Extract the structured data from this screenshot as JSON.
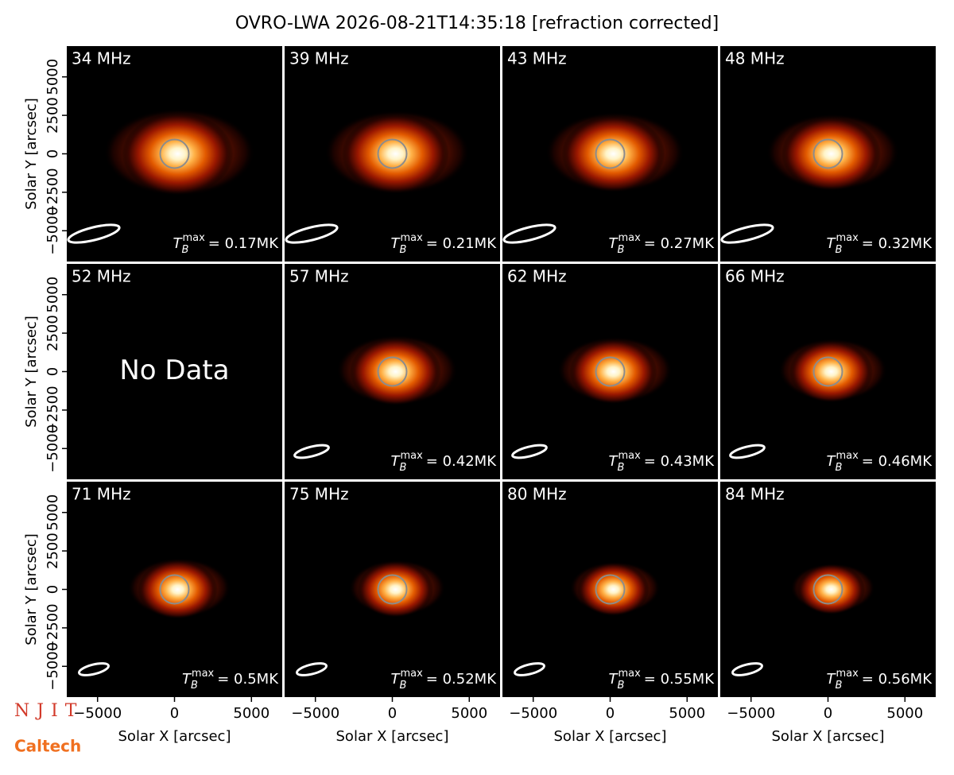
{
  "title": "OVRO-LWA 2026-08-21T14:35:18 [refraction corrected]",
  "logos": {
    "njit": "NJIT",
    "caltech": "Caltech"
  },
  "chart_data": [
    {
      "type": "image",
      "title": "34 MHz",
      "xlim": [
        -7000,
        7000
      ],
      "ylim": [
        -7000,
        7000
      ],
      "ylabel": "Solar Y [arcsec]",
      "yticks": [
        {
          "value": -5000,
          "label": "−5000"
        },
        {
          "value": -2500,
          "label": "−2500"
        },
        0,
        2500,
        5000
      ],
      "annotation": {
        "symbol": "T",
        "subscript": "B",
        "superscript": "max",
        "text": "= 0.17MK"
      }
    },
    {
      "type": "image",
      "title": "39 MHz",
      "xlim": [
        -7000,
        7000
      ],
      "ylim": [
        -7000,
        7000
      ],
      "annotation": {
        "symbol": "T",
        "subscript": "B",
        "superscript": "max",
        "text": "= 0.21MK"
      }
    },
    {
      "type": "image",
      "title": "43 MHz",
      "xlim": [
        -7000,
        7000
      ],
      "ylim": [
        -7000,
        7000
      ],
      "annotation": {
        "symbol": "T",
        "subscript": "B",
        "superscript": "max",
        "text": "= 0.27MK"
      }
    },
    {
      "type": "image",
      "title": "48 MHz",
      "xlim": [
        -7000,
        7000
      ],
      "ylim": [
        -7000,
        7000
      ],
      "annotation": {
        "symbol": "T",
        "subscript": "B",
        "superscript": "max",
        "text": "= 0.32MK"
      }
    },
    {
      "type": "image",
      "title": "52 MHz",
      "xlim": [
        -7000,
        7000
      ],
      "ylim": [
        -7000,
        7000
      ],
      "ylabel": "Solar Y [arcsec]",
      "yticks": [
        {
          "value": -5000,
          "label": "−5000"
        },
        {
          "value": -2500,
          "label": "−2500"
        },
        0,
        2500,
        5000
      ],
      "note": "No Data"
    },
    {
      "type": "image",
      "title": "57 MHz",
      "xlim": [
        -7000,
        7000
      ],
      "ylim": [
        -7000,
        7000
      ],
      "annotation": {
        "symbol": "T",
        "subscript": "B",
        "superscript": "max",
        "text": "= 0.42MK"
      }
    },
    {
      "type": "image",
      "title": "62 MHz",
      "xlim": [
        -7000,
        7000
      ],
      "ylim": [
        -7000,
        7000
      ],
      "annotation": {
        "symbol": "T",
        "subscript": "B",
        "superscript": "max",
        "text": "= 0.43MK"
      }
    },
    {
      "type": "image",
      "title": "66 MHz",
      "xlim": [
        -7000,
        7000
      ],
      "ylim": [
        -7000,
        7000
      ],
      "annotation": {
        "symbol": "T",
        "subscript": "B",
        "superscript": "max",
        "text": "= 0.46MK"
      }
    },
    {
      "type": "image",
      "title": "71 MHz",
      "xlim": [
        -7000,
        7000
      ],
      "ylim": [
        -7000,
        7000
      ],
      "ylabel": "Solar Y [arcsec]",
      "yticks": [
        {
          "value": -5000,
          "label": "−5000"
        },
        {
          "value": -2500,
          "label": "−2500"
        },
        0,
        2500,
        5000
      ],
      "xlabel": "Solar X [arcsec]",
      "xticks": [
        {
          "value": -5000,
          "label": "−5000"
        },
        0,
        5000
      ],
      "annotation": {
        "symbol": "T",
        "subscript": "B",
        "superscript": "max",
        "text": "= 0.5MK"
      }
    },
    {
      "type": "image",
      "title": "75 MHz",
      "xlim": [
        -7000,
        7000
      ],
      "ylim": [
        -7000,
        7000
      ],
      "xlabel": "Solar X [arcsec]",
      "xticks": [
        {
          "value": -5000,
          "label": "−5000"
        },
        0,
        5000
      ],
      "annotation": {
        "symbol": "T",
        "subscript": "B",
        "superscript": "max",
        "text": "= 0.52MK"
      }
    },
    {
      "type": "image",
      "title": "80 MHz",
      "xlim": [
        -7000,
        7000
      ],
      "ylim": [
        -7000,
        7000
      ],
      "xlabel": "Solar X [arcsec]",
      "xticks": [
        {
          "value": -5000,
          "label": "−5000"
        },
        0,
        5000
      ],
      "annotation": {
        "symbol": "T",
        "subscript": "B",
        "superscript": "max",
        "text": "= 0.55MK"
      }
    },
    {
      "type": "image",
      "title": "84 MHz",
      "xlim": [
        -7000,
        7000
      ],
      "ylim": [
        -7000,
        7000
      ],
      "xlabel": "Solar X [arcsec]",
      "xticks": [
        {
          "value": -5000,
          "label": "−5000"
        },
        0,
        5000
      ],
      "annotation": {
        "symbol": "T",
        "subscript": "B",
        "superscript": "max",
        "text": "= 0.56MK"
      }
    }
  ]
}
